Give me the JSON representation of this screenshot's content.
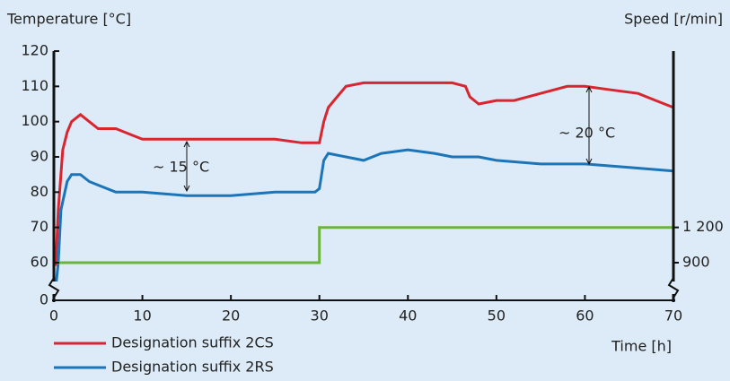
{
  "chart_data": {
    "type": "line",
    "y_label": "Temperature [°C]",
    "y2_label": "Speed [r/min]",
    "x_label": "Time [h]",
    "xlim": [
      0,
      70
    ],
    "xticks": [
      0,
      10,
      20,
      30,
      40,
      50,
      60,
      70
    ],
    "ylim": [
      0,
      120
    ],
    "y_break": [
      0,
      60
    ],
    "yticks": [
      0,
      60,
      70,
      80,
      90,
      100,
      110,
      120
    ],
    "y2lim": [
      0,
      2700
    ],
    "y2_break": [
      0,
      900
    ],
    "y2ticks": [
      900,
      {
        "value": 1200,
        "label": "1 200"
      }
    ],
    "grid": false,
    "legend": "bottom-left",
    "annotations": [
      "~ 15 °C",
      "~ 20 °C"
    ],
    "series": [
      {
        "name": "Designation suffix 2CS",
        "color": "#d9252f",
        "x": [
          0.2,
          0.5,
          1,
          1.5,
          2,
          3,
          4,
          5,
          7,
          9,
          10,
          15,
          20,
          25,
          28,
          30,
          30.5,
          31,
          32,
          33,
          35,
          40,
          45,
          46.5,
          47,
          48,
          50,
          52,
          55,
          58,
          60,
          63,
          66,
          68,
          70
        ],
        "values": [
          55,
          75,
          92,
          97,
          100,
          102,
          100,
          98,
          98,
          96,
          95,
          95,
          95,
          95,
          94,
          94,
          100,
          104,
          107,
          110,
          111,
          111,
          111,
          110,
          107,
          105,
          106,
          106,
          108,
          110,
          110,
          109,
          108,
          106,
          104
        ]
      },
      {
        "name": "Designation suffix 2RS",
        "color": "#1c74b9",
        "x": [
          0.2,
          0.5,
          0.8,
          1.5,
          2,
          3,
          4,
          5,
          7,
          10,
          15,
          20,
          25,
          28,
          29.5,
          30,
          30.5,
          31,
          33,
          35,
          37,
          40,
          43,
          45,
          48,
          50,
          55,
          60,
          65,
          70
        ],
        "values": [
          20,
          60,
          75,
          83,
          85,
          85,
          83,
          82,
          80,
          80,
          79,
          79,
          80,
          80,
          80,
          81,
          89,
          91,
          90,
          89,
          91,
          92,
          91,
          90,
          90,
          89,
          88,
          88,
          87,
          86
        ]
      },
      {
        "name": "Speed",
        "color": "#6bb43f",
        "axis": "y2",
        "legend": false,
        "x": [
          0.4,
          30,
          30,
          70
        ],
        "values": [
          900,
          900,
          1200,
          1200
        ]
      }
    ]
  }
}
